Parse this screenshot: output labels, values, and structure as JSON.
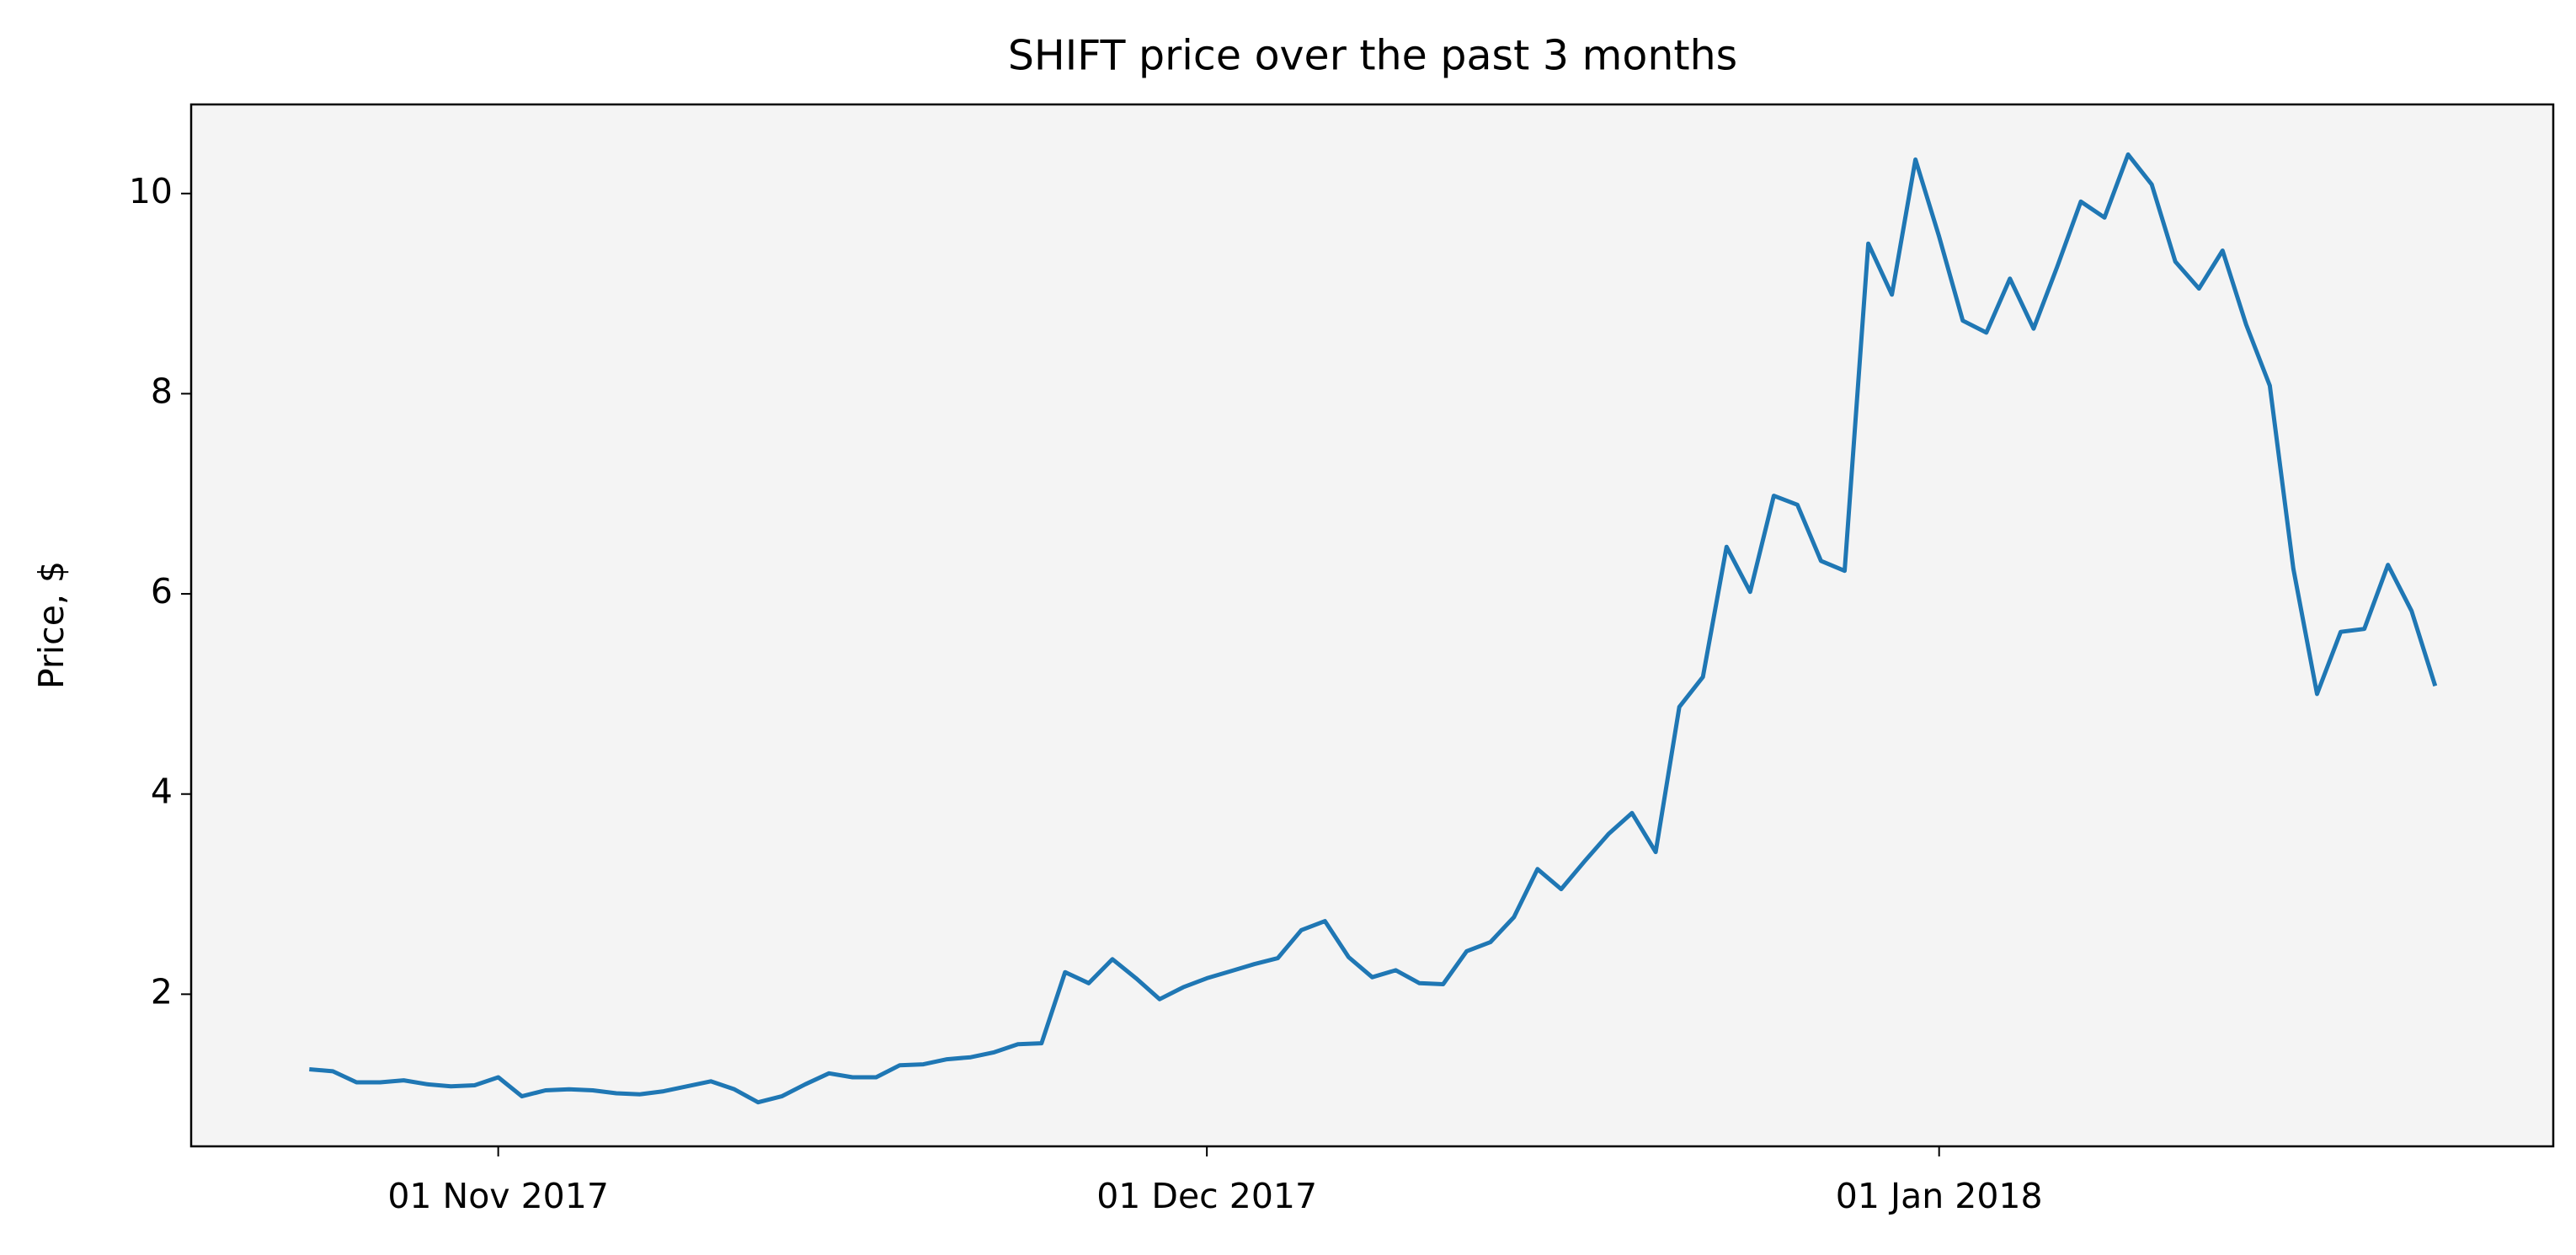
{
  "chart_data": {
    "type": "line",
    "title": "SHIFT price over the past 3 months",
    "y_label": "Price, $",
    "x": [
      "2017-10-24",
      "2017-10-25",
      "2017-10-26",
      "2017-10-27",
      "2017-10-28",
      "2017-10-29",
      "2017-10-30",
      "2017-10-31",
      "2017-11-01",
      "2017-11-02",
      "2017-11-03",
      "2017-11-04",
      "2017-11-05",
      "2017-11-06",
      "2017-11-07",
      "2017-11-08",
      "2017-11-09",
      "2017-11-10",
      "2017-11-11",
      "2017-11-12",
      "2017-11-13",
      "2017-11-14",
      "2017-11-15",
      "2017-11-16",
      "2017-11-17",
      "2017-11-18",
      "2017-11-19",
      "2017-11-20",
      "2017-11-21",
      "2017-11-22",
      "2017-11-23",
      "2017-11-24",
      "2017-11-25",
      "2017-11-26",
      "2017-11-27",
      "2017-11-28",
      "2017-11-29",
      "2017-11-30",
      "2017-12-01",
      "2017-12-02",
      "2017-12-03",
      "2017-12-04",
      "2017-12-05",
      "2017-12-06",
      "2017-12-07",
      "2017-12-08",
      "2017-12-09",
      "2017-12-10",
      "2017-12-11",
      "2017-12-12",
      "2017-12-13",
      "2017-12-14",
      "2017-12-15",
      "2017-12-16",
      "2017-12-17",
      "2017-12-18",
      "2017-12-19",
      "2017-12-20",
      "2017-12-21",
      "2017-12-22",
      "2017-12-23",
      "2017-12-24",
      "2017-12-25",
      "2017-12-26",
      "2017-12-27",
      "2017-12-28",
      "2017-12-29",
      "2017-12-30",
      "2017-12-31",
      "2018-01-01",
      "2018-01-02",
      "2018-01-03",
      "2018-01-04",
      "2018-01-05",
      "2018-01-06",
      "2018-01-07",
      "2018-01-08",
      "2018-01-09",
      "2018-01-10",
      "2018-01-11",
      "2018-01-12",
      "2018-01-13",
      "2018-01-14",
      "2018-01-15",
      "2018-01-16",
      "2018-01-17",
      "2018-01-18",
      "2018-01-19",
      "2018-01-20",
      "2018-01-21",
      "2018-01-22"
    ],
    "series": [
      {
        "color": "#1f77b4",
        "values": [
          1.25,
          1.23,
          1.12,
          1.12,
          1.14,
          1.1,
          1.08,
          1.09,
          1.17,
          0.98,
          1.04,
          1.05,
          1.04,
          1.01,
          1.0,
          1.03,
          1.08,
          1.13,
          1.05,
          0.92,
          0.98,
          1.1,
          1.21,
          1.17,
          1.17,
          1.29,
          1.3,
          1.35,
          1.37,
          1.42,
          1.5,
          1.51,
          2.22,
          2.11,
          2.35,
          2.16,
          1.95,
          2.07,
          2.16,
          2.23,
          2.3,
          2.36,
          2.64,
          2.73,
          2.37,
          2.17,
          2.24,
          2.11,
          2.1,
          2.43,
          2.52,
          2.77,
          3.25,
          3.05,
          3.33,
          3.6,
          3.81,
          3.42,
          4.87,
          5.17,
          6.47,
          6.02,
          6.98,
          6.89,
          6.33,
          6.23,
          9.5,
          8.99,
          10.34,
          9.57,
          8.73,
          8.61,
          9.15,
          8.65,
          9.27,
          9.92,
          9.76,
          10.39,
          10.09,
          9.32,
          9.05,
          9.43,
          8.69,
          8.08,
          6.25,
          5.0,
          5.62,
          5.65,
          6.29,
          5.83,
          5.08
        ]
      }
    ],
    "xlim": [
      "2017-10-19",
      "2018-01-27"
    ],
    "xticks": [
      {
        "value": "2017-11-01",
        "label": "01 Nov 2017"
      },
      {
        "value": "2017-12-01",
        "label": "01 Dec 2017"
      },
      {
        "value": "2018-01-01",
        "label": "01 Jan 2018"
      }
    ],
    "ylim": [
      0.48,
      10.89
    ],
    "yticks": [
      2,
      4,
      6,
      8,
      10
    ],
    "background": "#f4f4f4"
  }
}
